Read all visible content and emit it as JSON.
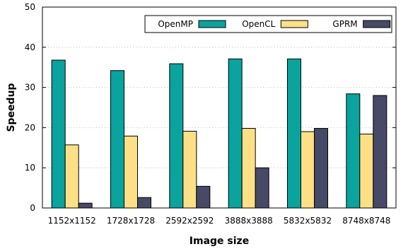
{
  "chart_data": {
    "type": "bar",
    "xlabel": "Image size",
    "ylabel": "Speedup",
    "ylim": [
      0,
      50
    ],
    "yticks": [
      0,
      10,
      20,
      30,
      40,
      50
    ],
    "grid": true,
    "legend_position": "top-right",
    "categories": [
      "1152x1152",
      "1728x1728",
      "2592x2592",
      "3888x3888",
      "5832x5832",
      "8748x8748"
    ],
    "series": [
      {
        "name": "OpenMP",
        "color": "#0aa39e",
        "values": [
          36.8,
          34.2,
          35.9,
          37.1,
          37.1,
          28.4
        ]
      },
      {
        "name": "OpenCL",
        "color": "#fde086",
        "values": [
          15.7,
          17.9,
          19.1,
          19.8,
          19.0,
          18.4
        ]
      },
      {
        "name": "GPRM",
        "color": "#474a66",
        "values": [
          1.2,
          2.6,
          5.4,
          10.0,
          19.8,
          28.0
        ]
      }
    ]
  }
}
